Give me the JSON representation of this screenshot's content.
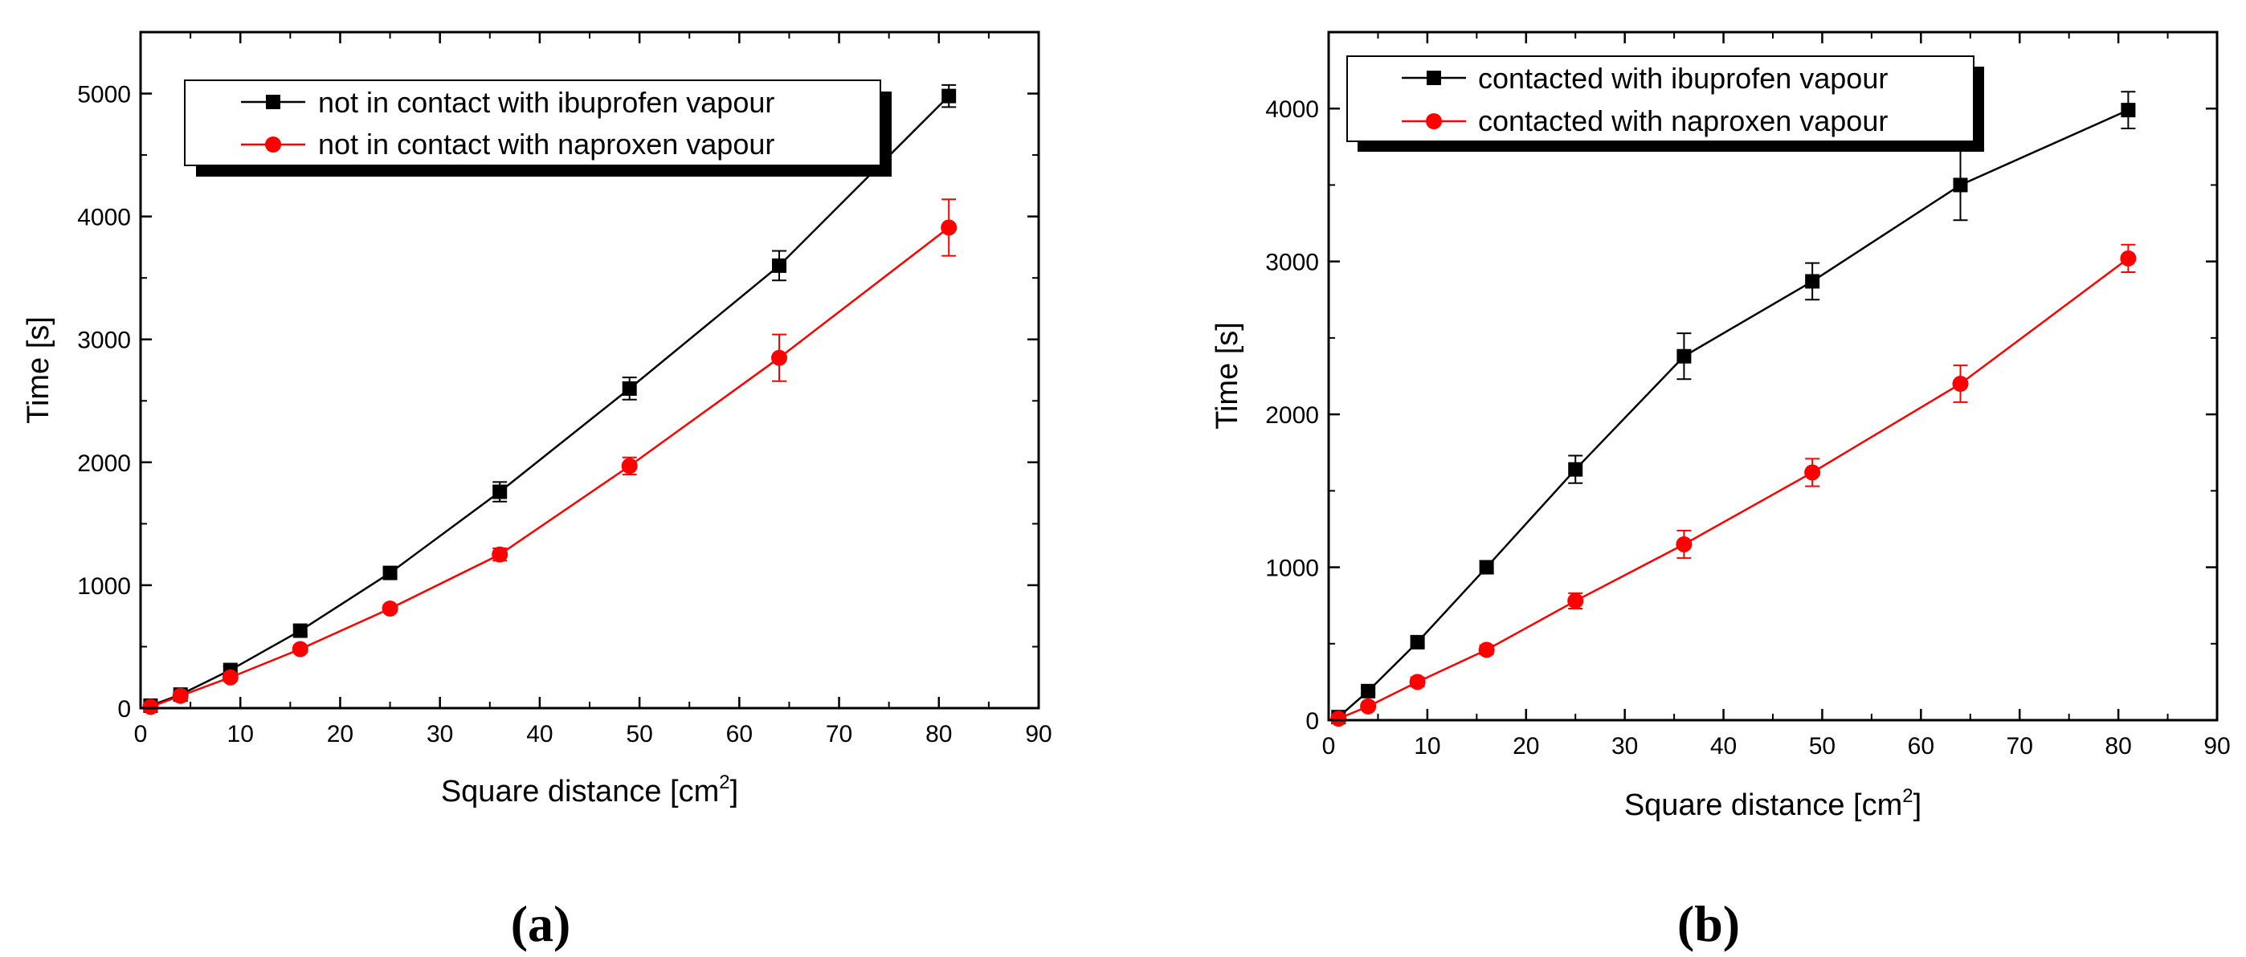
{
  "colors": {
    "black_series": "#000000",
    "red_series": "#ff0000",
    "axis": "#000000"
  },
  "chart_data": [
    {
      "type": "line",
      "panel_label": "(a)",
      "xlabel": "Square distance [cm",
      "xlabel_sup": "2",
      "xlabel_end": "]",
      "ylabel": "Time [s]",
      "xlim": [
        0,
        90
      ],
      "ylim": [
        0,
        5500
      ],
      "xticks": [
        0,
        10,
        20,
        30,
        40,
        50,
        60,
        70,
        80,
        90
      ],
      "yticks": [
        0,
        1000,
        2000,
        3000,
        4000,
        5000
      ],
      "grid": false,
      "legend_position": "top-left",
      "x": [
        1,
        4,
        9,
        16,
        25,
        36,
        49,
        64,
        81
      ],
      "series": [
        {
          "name": "not in contact with ibuprofen vapour",
          "color": "#000000",
          "marker": "square",
          "values": [
            20,
            110,
            310,
            630,
            1100,
            1760,
            2600,
            3600,
            4980
          ],
          "errors": [
            10,
            20,
            30,
            40,
            40,
            80,
            90,
            120,
            90
          ]
        },
        {
          "name": "not in contact with naproxen vapour",
          "color": "#ff0000",
          "marker": "circle",
          "values": [
            10,
            100,
            250,
            480,
            810,
            1250,
            1970,
            2850,
            3910
          ],
          "errors": [
            10,
            20,
            30,
            30,
            30,
            50,
            70,
            190,
            230
          ]
        }
      ]
    },
    {
      "type": "line",
      "panel_label": "(b)",
      "xlabel": "Square distance [cm",
      "xlabel_sup": "2",
      "xlabel_end": "]",
      "ylabel": "Time [s]",
      "xlim": [
        0,
        90
      ],
      "ylim": [
        0,
        4500
      ],
      "xticks": [
        0,
        10,
        20,
        30,
        40,
        50,
        60,
        70,
        80,
        90
      ],
      "yticks": [
        0,
        1000,
        2000,
        3000,
        4000
      ],
      "grid": false,
      "legend_position": "top-left",
      "x": [
        1,
        4,
        9,
        16,
        25,
        36,
        49,
        64,
        81
      ],
      "series": [
        {
          "name": "contacted with ibuprofen vapour",
          "color": "#000000",
          "marker": "square",
          "values": [
            20,
            190,
            510,
            1000,
            1640,
            2380,
            2870,
            3500,
            3990
          ],
          "errors": [
            10,
            20,
            30,
            40,
            90,
            150,
            120,
            230,
            120
          ]
        },
        {
          "name": "contacted with naproxen vapour",
          "color": "#ff0000",
          "marker": "circle",
          "values": [
            10,
            90,
            250,
            460,
            780,
            1150,
            1620,
            2200,
            3020
          ],
          "errors": [
            10,
            20,
            30,
            30,
            50,
            90,
            90,
            120,
            90
          ]
        }
      ]
    }
  ]
}
